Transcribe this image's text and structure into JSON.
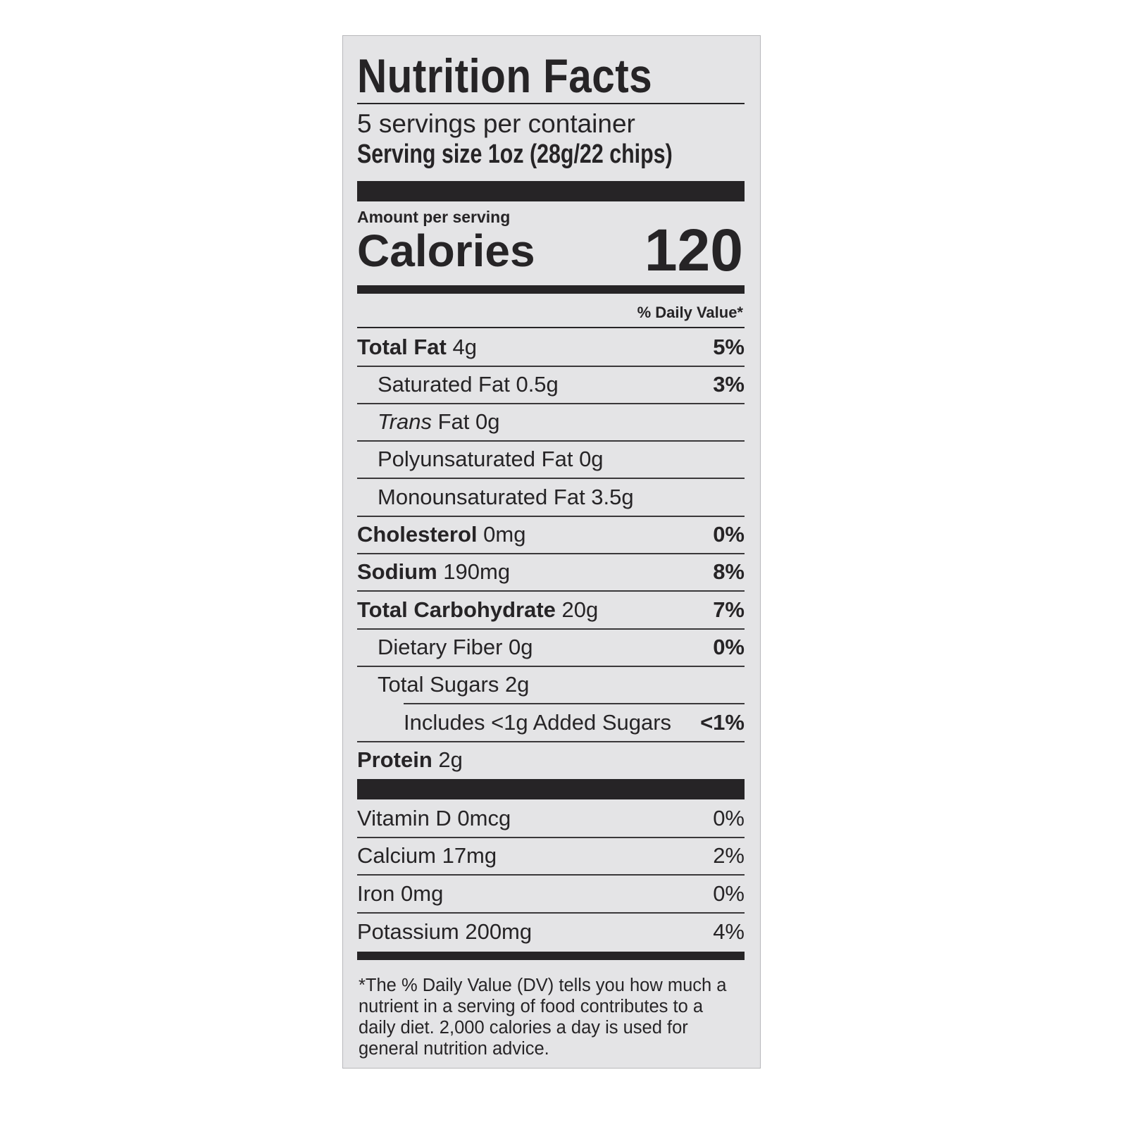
{
  "title": "Nutrition Facts",
  "servings_per_container": "5 servings per container",
  "serving_size": "Serving size 1oz (28g/22 chips)",
  "amount_per_serving": "Amount per serving",
  "calories_label": "Calories",
  "calories_value": "120",
  "daily_value_header": "% Daily Value*",
  "nutrients": [
    {
      "bold": "Total Fat",
      "name": "",
      "amount": " 4g",
      "dv": "5%",
      "indent": 0
    },
    {
      "bold": "",
      "name": "Saturated Fat",
      "amount": " 0.5g",
      "dv": "3%",
      "indent": 1
    },
    {
      "bold": "",
      "name": "Trans",
      "italic": true,
      "rest": " Fat",
      "amount": " 0g",
      "dv": "",
      "indent": 1
    },
    {
      "bold": "",
      "name": "Polyunsaturated Fat",
      "amount": " 0g",
      "dv": "",
      "indent": 1
    },
    {
      "bold": "",
      "name": "Monounsaturated Fat",
      "amount": " 3.5g",
      "dv": "",
      "indent": 1
    },
    {
      "bold": "Cholesterol",
      "name": "",
      "amount": " 0mg",
      "dv": "0%",
      "indent": 0
    },
    {
      "bold": "Sodium",
      "name": "",
      "amount": " 190mg",
      "dv": "8%",
      "indent": 0
    },
    {
      "bold": "Total Carbohydrate",
      "name": "",
      "amount": " 20g",
      "dv": "7%",
      "indent": 0
    },
    {
      "bold": "",
      "name": "Dietary Fiber",
      "amount": " 0g",
      "dv": "0%",
      "indent": 1
    },
    {
      "bold": "",
      "name": "Total Sugars",
      "amount": " 2g",
      "dv": "",
      "indent": 1
    },
    {
      "bold": "",
      "name": "Includes <1g Added Sugars",
      "amount": "",
      "dv": "<1%",
      "indent": 2
    },
    {
      "bold": "Protein",
      "name": "",
      "amount": " 2g",
      "dv": "",
      "indent": 0
    }
  ],
  "vitamins": [
    {
      "name": "Vitamin D 0mcg",
      "dv": "0%"
    },
    {
      "name": "Calcium 17mg",
      "dv": "2%"
    },
    {
      "name": "Iron 0mg",
      "dv": "0%"
    },
    {
      "name": "Potassium 200mg",
      "dv": "4%"
    }
  ],
  "footnote": "*The % Daily Value (DV) tells you how much a nutrient in a serving of food contributes to a daily diet. 2,000 calories a day is used for general nutrition advice.",
  "colors": {
    "label_bg": "#e4e4e6",
    "ink": "#262426"
  }
}
